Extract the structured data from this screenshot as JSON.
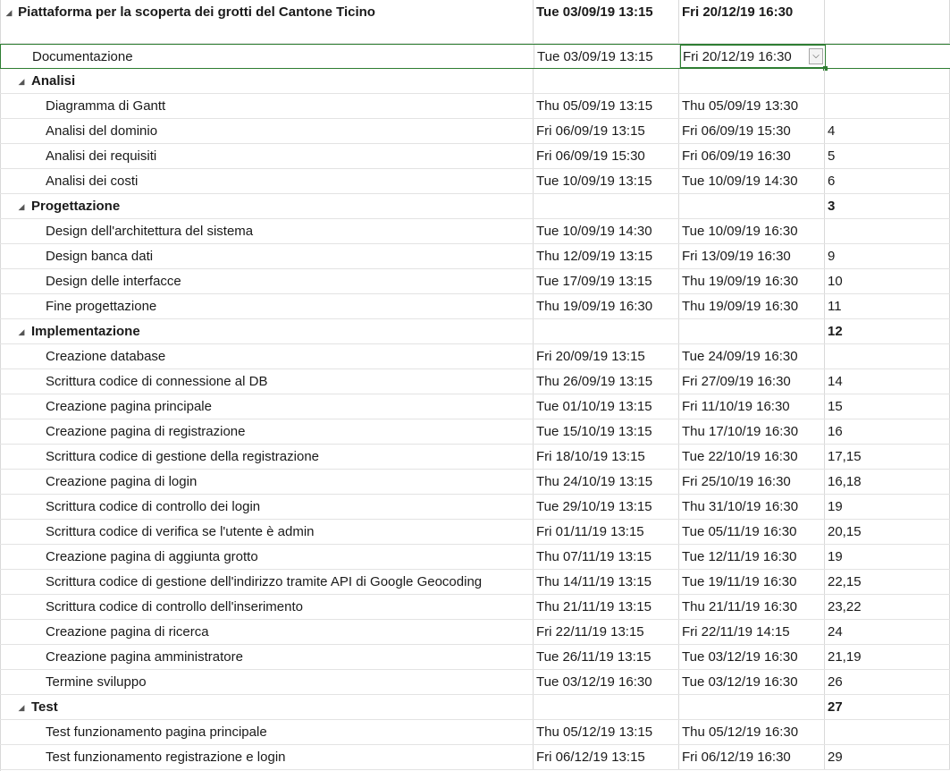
{
  "project": {
    "name": "Piattaforma per la scoperta dei grotti del Cantone Ticino",
    "start": "Tue 03/09/19 13:15",
    "finish": "Fri 20/12/19 16:30",
    "pred": ""
  },
  "icons": {
    "collapse": "collapse-triangle-icon",
    "dropdown": "chevron-down-icon"
  },
  "colors": {
    "selection": "#2e7d32",
    "grid": "#d9d9d9"
  },
  "rows": [
    {
      "name": "Documentazione",
      "start": "Tue 03/09/19 13:15",
      "finish": "Fri 20/12/19 16:30",
      "pred": ""
    },
    {
      "name": "Analisi",
      "start": "",
      "finish": "",
      "pred": ""
    },
    {
      "name": "Diagramma di Gantt",
      "start": "Thu 05/09/19 13:15",
      "finish": "Thu 05/09/19 13:30",
      "pred": ""
    },
    {
      "name": "Analisi del dominio",
      "start": "Fri 06/09/19 13:15",
      "finish": "Fri 06/09/19 15:30",
      "pred": "4"
    },
    {
      "name": "Analisi dei requisiti",
      "start": "Fri 06/09/19 15:30",
      "finish": "Fri 06/09/19 16:30",
      "pred": "5"
    },
    {
      "name": "Analisi dei costi",
      "start": "Tue 10/09/19 13:15",
      "finish": "Tue 10/09/19 14:30",
      "pred": "6"
    },
    {
      "name": "Progettazione",
      "start": "",
      "finish": "",
      "pred": "3"
    },
    {
      "name": "Design dell'architettura del sistema",
      "start": "Tue 10/09/19 14:30",
      "finish": "Tue 10/09/19 16:30",
      "pred": ""
    },
    {
      "name": "Design banca dati",
      "start": "Thu 12/09/19 13:15",
      "finish": "Fri 13/09/19 16:30",
      "pred": "9"
    },
    {
      "name": "Design delle interfacce",
      "start": "Tue 17/09/19 13:15",
      "finish": "Thu 19/09/19 16:30",
      "pred": "10"
    },
    {
      "name": "Fine progettazione",
      "start": "Thu 19/09/19 16:30",
      "finish": "Thu 19/09/19 16:30",
      "pred": "11"
    },
    {
      "name": "Implementazione",
      "start": "",
      "finish": "",
      "pred": "12"
    },
    {
      "name": "Creazione database",
      "start": "Fri 20/09/19 13:15",
      "finish": "Tue 24/09/19 16:30",
      "pred": ""
    },
    {
      "name": "Scrittura codice di connessione al DB",
      "start": "Thu 26/09/19 13:15",
      "finish": "Fri 27/09/19 16:30",
      "pred": "14"
    },
    {
      "name": "Creazione pagina principale",
      "start": "Tue 01/10/19 13:15",
      "finish": "Fri 11/10/19 16:30",
      "pred": "15"
    },
    {
      "name": "Creazione pagina di registrazione",
      "start": "Tue 15/10/19 13:15",
      "finish": "Thu 17/10/19 16:30",
      "pred": "16"
    },
    {
      "name": "Scrittura codice di gestione della registrazione",
      "start": "Fri 18/10/19 13:15",
      "finish": "Tue 22/10/19 16:30",
      "pred": "17,15"
    },
    {
      "name": "Creazione pagina di login",
      "start": "Thu 24/10/19 13:15",
      "finish": "Fri 25/10/19 16:30",
      "pred": "16,18"
    },
    {
      "name": "Scrittura codice di controllo dei login",
      "start": "Tue 29/10/19 13:15",
      "finish": "Thu 31/10/19 16:30",
      "pred": "19"
    },
    {
      "name": "Scrittura codice di verifica se l'utente è admin",
      "start": "Fri 01/11/19 13:15",
      "finish": "Tue 05/11/19 16:30",
      "pred": "20,15"
    },
    {
      "name": "Creazione pagina di aggiunta grotto",
      "start": "Thu 07/11/19 13:15",
      "finish": "Tue 12/11/19 16:30",
      "pred": "19"
    },
    {
      "name": "Scrittura codice di gestione dell'indirizzo tramite API di Google Geocoding",
      "start": "Thu 14/11/19 13:15",
      "finish": "Tue 19/11/19 16:30",
      "pred": "22,15"
    },
    {
      "name": "Scrittura codice di controllo dell'inserimento",
      "start": "Thu 21/11/19 13:15",
      "finish": "Thu 21/11/19 16:30",
      "pred": "23,22"
    },
    {
      "name": "Creazione pagina di ricerca",
      "start": "Fri 22/11/19 13:15",
      "finish": "Fri 22/11/19 14:15",
      "pred": "24"
    },
    {
      "name": "Creazione pagina amministratore",
      "start": "Tue 26/11/19 13:15",
      "finish": "Tue 03/12/19 16:30",
      "pred": "21,19"
    },
    {
      "name": "Termine sviluppo",
      "start": "Tue 03/12/19 16:30",
      "finish": "Tue 03/12/19 16:30",
      "pred": "26"
    },
    {
      "name": "Test",
      "start": "",
      "finish": "",
      "pred": "27"
    },
    {
      "name": "Test funzionamento pagina principale",
      "start": "Thu 05/12/19 13:15",
      "finish": "Thu 05/12/19 16:30",
      "pred": ""
    },
    {
      "name": "Test funzionamento registrazione e login",
      "start": "Fri 06/12/19 13:15",
      "finish": "Fri 06/12/19 16:30",
      "pred": "29"
    }
  ]
}
